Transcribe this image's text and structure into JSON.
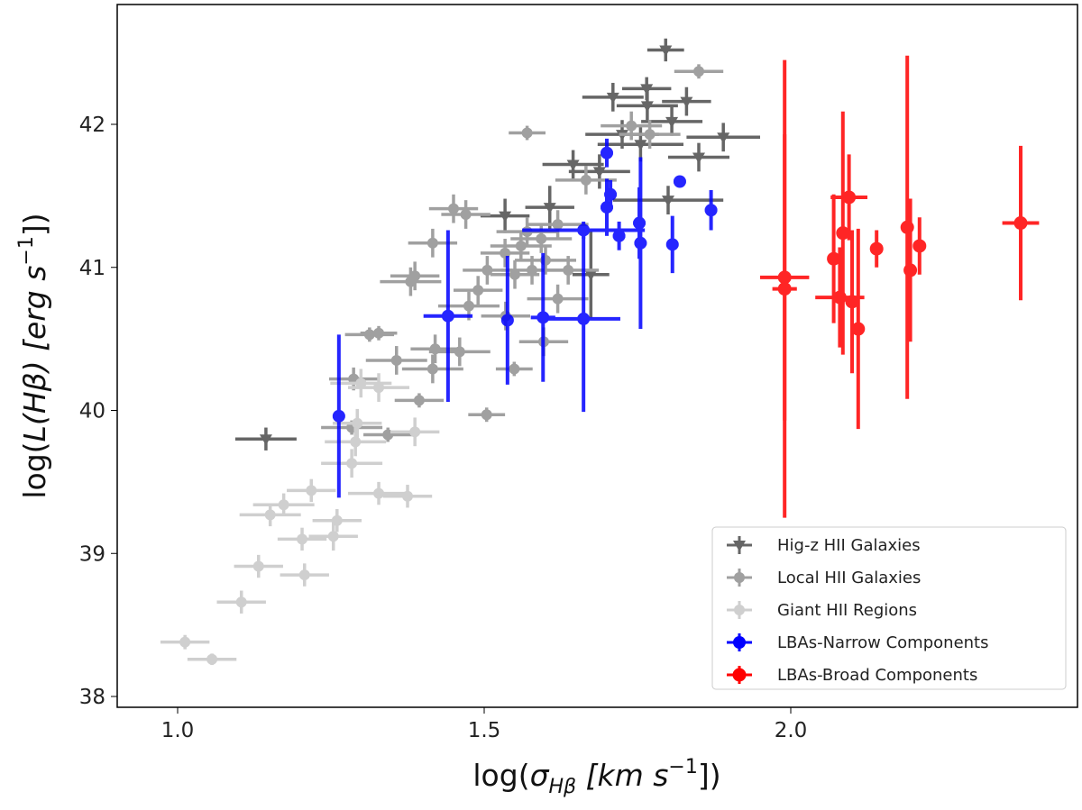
{
  "chart_data": {
    "type": "scatter",
    "xlabel": {
      "prefix": "log(",
      "sym": "σ",
      "sub": "Hβ",
      "mid": " [km s",
      "sup": "−1",
      "suffix": "])"
    },
    "ylabel": {
      "prefix": "log(",
      "sym": "L",
      "paren": "(Hβ)",
      "mid": " [erg s",
      "sup": "−1",
      "suffix": "])"
    },
    "xlim": [
      0.9,
      2.44
    ],
    "ylim": [
      37.93,
      42.83
    ],
    "xticks": [
      {
        "v": 1.0,
        "label": "1.0"
      },
      {
        "v": 1.5,
        "label": "1.5"
      },
      {
        "v": 2.0,
        "label": "2.0"
      }
    ],
    "yticks": [
      {
        "v": 38,
        "label": "38"
      },
      {
        "v": 39,
        "label": "39"
      },
      {
        "v": 40,
        "label": "40"
      },
      {
        "v": 41,
        "label": "41"
      },
      {
        "v": 42,
        "label": "42"
      }
    ],
    "grid": false,
    "legend_position": "bottom-right",
    "series": [
      {
        "name": "Hig-z HII Galaxies",
        "color": "#666666",
        "marker": "triangle-down",
        "points": [
          [
            1.796,
            42.52,
            0.03,
            0.08
          ],
          [
            1.765,
            42.25,
            0.04,
            0.08
          ],
          [
            1.71,
            42.19,
            0.05,
            0.1
          ],
          [
            1.83,
            42.16,
            0.04,
            0.1
          ],
          [
            1.89,
            41.91,
            0.06,
            0.1
          ],
          [
            1.85,
            41.77,
            0.05,
            0.1
          ],
          [
            1.755,
            41.86,
            0.07,
            0.12
          ],
          [
            1.645,
            41.72,
            0.05,
            0.1
          ],
          [
            1.607,
            41.42,
            0.04,
            0.15
          ],
          [
            1.534,
            41.36,
            0.04,
            0.12
          ],
          [
            1.674,
            40.95,
            0.03,
            0.3
          ],
          [
            1.144,
            39.8,
            0.05,
            0.08
          ],
          [
            1.725,
            41.93,
            0.06,
            0.1
          ],
          [
            1.806,
            42.02,
            0.05,
            0.1
          ],
          [
            1.766,
            42.13,
            0.05,
            0.1
          ],
          [
            1.688,
            41.67,
            0.05,
            0.12
          ],
          [
            1.8,
            41.47,
            0.09,
            0.1
          ]
        ]
      },
      {
        "name": "Local HII Galaxies",
        "color": "#a0a0a0",
        "marker": "circle",
        "points": [
          [
            1.85,
            42.37,
            0.04,
            0.05
          ],
          [
            1.57,
            41.94,
            0.03,
            0.05
          ],
          [
            1.45,
            41.41,
            0.04,
            0.1
          ],
          [
            1.47,
            41.37,
            0.04,
            0.1
          ],
          [
            1.387,
            40.94,
            0.04,
            0.1
          ],
          [
            1.38,
            40.9,
            0.05,
            0.1
          ],
          [
            1.313,
            40.53,
            0.04,
            0.05
          ],
          [
            1.328,
            40.54,
            0.03,
            0.05
          ],
          [
            1.287,
            40.22,
            0.04,
            0.08
          ],
          [
            1.416,
            40.29,
            0.05,
            0.1
          ],
          [
            1.394,
            40.07,
            0.04,
            0.05
          ],
          [
            1.343,
            39.83,
            0.04,
            0.05
          ],
          [
            1.504,
            39.97,
            0.03,
            0.05
          ],
          [
            1.549,
            40.29,
            0.03,
            0.05
          ],
          [
            1.475,
            40.73,
            0.05,
            0.1
          ],
          [
            1.578,
            40.98,
            0.05,
            0.1
          ],
          [
            1.534,
            41.1,
            0.04,
            0.1
          ],
          [
            1.593,
            41.2,
            0.05,
            0.1
          ],
          [
            1.62,
            41.3,
            0.05,
            0.1
          ],
          [
            1.505,
            40.98,
            0.04,
            0.1
          ],
          [
            1.62,
            40.78,
            0.05,
            0.1
          ],
          [
            1.46,
            40.41,
            0.05,
            0.1
          ],
          [
            1.357,
            40.35,
            0.05,
            0.1
          ],
          [
            1.597,
            40.48,
            0.04,
            0.1
          ],
          [
            1.666,
            41.61,
            0.05,
            0.1
          ],
          [
            1.74,
            41.99,
            0.05,
            0.1
          ],
          [
            1.77,
            41.93,
            0.05,
            0.1
          ],
          [
            1.42,
            40.43,
            0.04,
            0.1
          ],
          [
            1.535,
            40.66,
            0.04,
            0.1
          ],
          [
            1.637,
            40.98,
            0.05,
            0.1
          ],
          [
            1.284,
            39.88,
            0.05,
            0.05
          ],
          [
            1.49,
            40.84,
            0.04,
            0.1
          ],
          [
            1.416,
            41.17,
            0.04,
            0.1
          ],
          [
            1.57,
            41.25,
            0.05,
            0.1
          ],
          [
            1.56,
            41.15,
            0.05,
            0.1
          ],
          [
            1.6,
            41.05,
            0.05,
            0.1
          ],
          [
            1.55,
            40.95,
            0.04,
            0.1
          ]
        ]
      },
      {
        "name": "Giant HII Regions",
        "color": "#cfcfcf",
        "marker": "circle",
        "points": [
          [
            1.012,
            38.38,
            0.04,
            0.05
          ],
          [
            1.056,
            38.26,
            0.04,
            0.04
          ],
          [
            1.104,
            38.66,
            0.04,
            0.08
          ],
          [
            1.132,
            38.91,
            0.04,
            0.08
          ],
          [
            1.151,
            39.27,
            0.05,
            0.08
          ],
          [
            1.207,
            38.85,
            0.04,
            0.08
          ],
          [
            1.203,
            39.1,
            0.04,
            0.08
          ],
          [
            1.26,
            39.23,
            0.04,
            0.08
          ],
          [
            1.254,
            39.12,
            0.04,
            0.1
          ],
          [
            1.218,
            39.44,
            0.04,
            0.08
          ],
          [
            1.328,
            39.42,
            0.05,
            0.08
          ],
          [
            1.375,
            39.4,
            0.04,
            0.08
          ],
          [
            1.284,
            39.63,
            0.05,
            0.1
          ],
          [
            1.293,
            39.91,
            0.04,
            0.1
          ],
          [
            1.387,
            39.85,
            0.04,
            0.1
          ],
          [
            1.328,
            40.16,
            0.05,
            0.1
          ],
          [
            1.299,
            40.19,
            0.05,
            0.1
          ],
          [
            1.173,
            39.34,
            0.05,
            0.08
          ],
          [
            1.29,
            39.78,
            0.05,
            0.1
          ]
        ]
      },
      {
        "name": "LBAs-Narrow Components",
        "color": "#0000ff",
        "marker": "circle",
        "points": [
          [
            1.263,
            39.96,
            0.01,
            0.57
          ],
          [
            1.441,
            40.66,
            0.04,
            0.6
          ],
          [
            1.538,
            40.63,
            0.01,
            0.45
          ],
          [
            1.596,
            40.65,
            0.02,
            0.45
          ],
          [
            1.662,
            40.64,
            0.06,
            0.65
          ],
          [
            1.662,
            41.26,
            0.1,
            0.06
          ],
          [
            1.7,
            41.42,
            0.01,
            0.2
          ],
          [
            1.7,
            41.8,
            0.01,
            0.1
          ],
          [
            1.706,
            41.51,
            0.01,
            0.1
          ],
          [
            1.72,
            41.22,
            0.01,
            0.1
          ],
          [
            1.753,
            41.31,
            0.01,
            0.25
          ],
          [
            1.755,
            41.17,
            0.01,
            0.6
          ],
          [
            1.807,
            41.16,
            0.01,
            0.2
          ],
          [
            1.819,
            41.6,
            0.01,
            0.02
          ],
          [
            1.87,
            41.4,
            0.01,
            0.14
          ]
        ]
      },
      {
        "name": "LBAs-Broad Components",
        "color": "#ff0000",
        "marker": "circle",
        "points": [
          [
            1.99,
            40.93,
            0.04,
            1.0
          ],
          [
            1.99,
            40.85,
            0.02,
            1.6
          ],
          [
            2.07,
            41.06,
            0.01,
            0.45
          ],
          [
            2.085,
            41.24,
            0.01,
            0.85
          ],
          [
            2.095,
            41.49,
            0.03,
            0.3
          ],
          [
            2.08,
            40.79,
            0.04,
            0.35
          ],
          [
            2.1,
            40.76,
            0.01,
            0.5
          ],
          [
            2.11,
            40.57,
            0.01,
            0.7
          ],
          [
            2.14,
            41.13,
            0.01,
            0.13
          ],
          [
            2.19,
            41.28,
            0.01,
            1.2
          ],
          [
            2.195,
            40.98,
            0.01,
            0.5
          ],
          [
            2.21,
            41.15,
            0.01,
            0.2
          ],
          [
            2.375,
            41.31,
            0.03,
            0.54
          ]
        ]
      }
    ]
  }
}
